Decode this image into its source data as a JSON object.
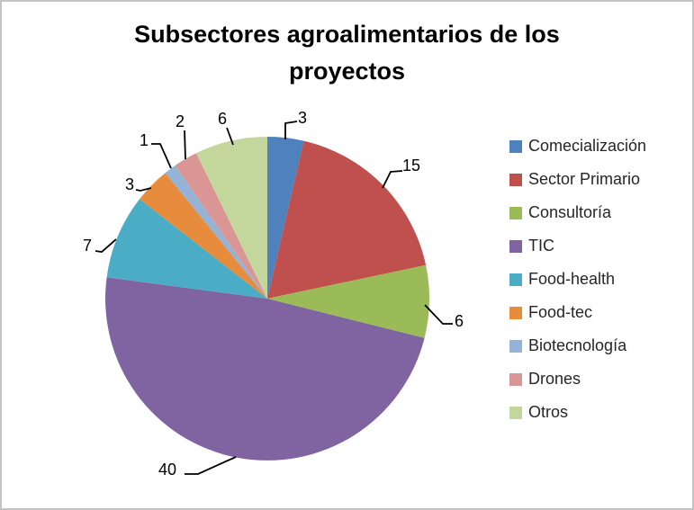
{
  "frame": {
    "background": "#ffffff",
    "border_color": "#C3C3C3"
  },
  "chart_data": {
    "type": "pie",
    "title": "Subsectores agroalimentarios de los proyectos",
    "categories": [
      "Comecialización",
      "Sector Primario",
      "Consultoría",
      "TIC",
      "Food-health",
      "Food-tec",
      "Biotecnología",
      "Drones",
      "Otros"
    ],
    "values": [
      3,
      15,
      6,
      40,
      7,
      3,
      1,
      2,
      6
    ],
    "total": 83,
    "colors": [
      "#4F81BD",
      "#C0504D",
      "#9BBB59",
      "#8064A2",
      "#4BACC6",
      "#E68C3C",
      "#95B3D7",
      "#D99694",
      "#C3D69B"
    ],
    "data_labels": [
      "3",
      "15",
      "6",
      "40",
      "7",
      "3",
      "1",
      "2",
      "6"
    ],
    "legend_position": "right",
    "label_style": "outside-with-leader-lines",
    "start_angle_deg": 0,
    "direction": "clockwise",
    "label_color": "#000000",
    "leader_line_color": "#000000",
    "title_color": "#000000",
    "legend_text_color": "#262626"
  }
}
